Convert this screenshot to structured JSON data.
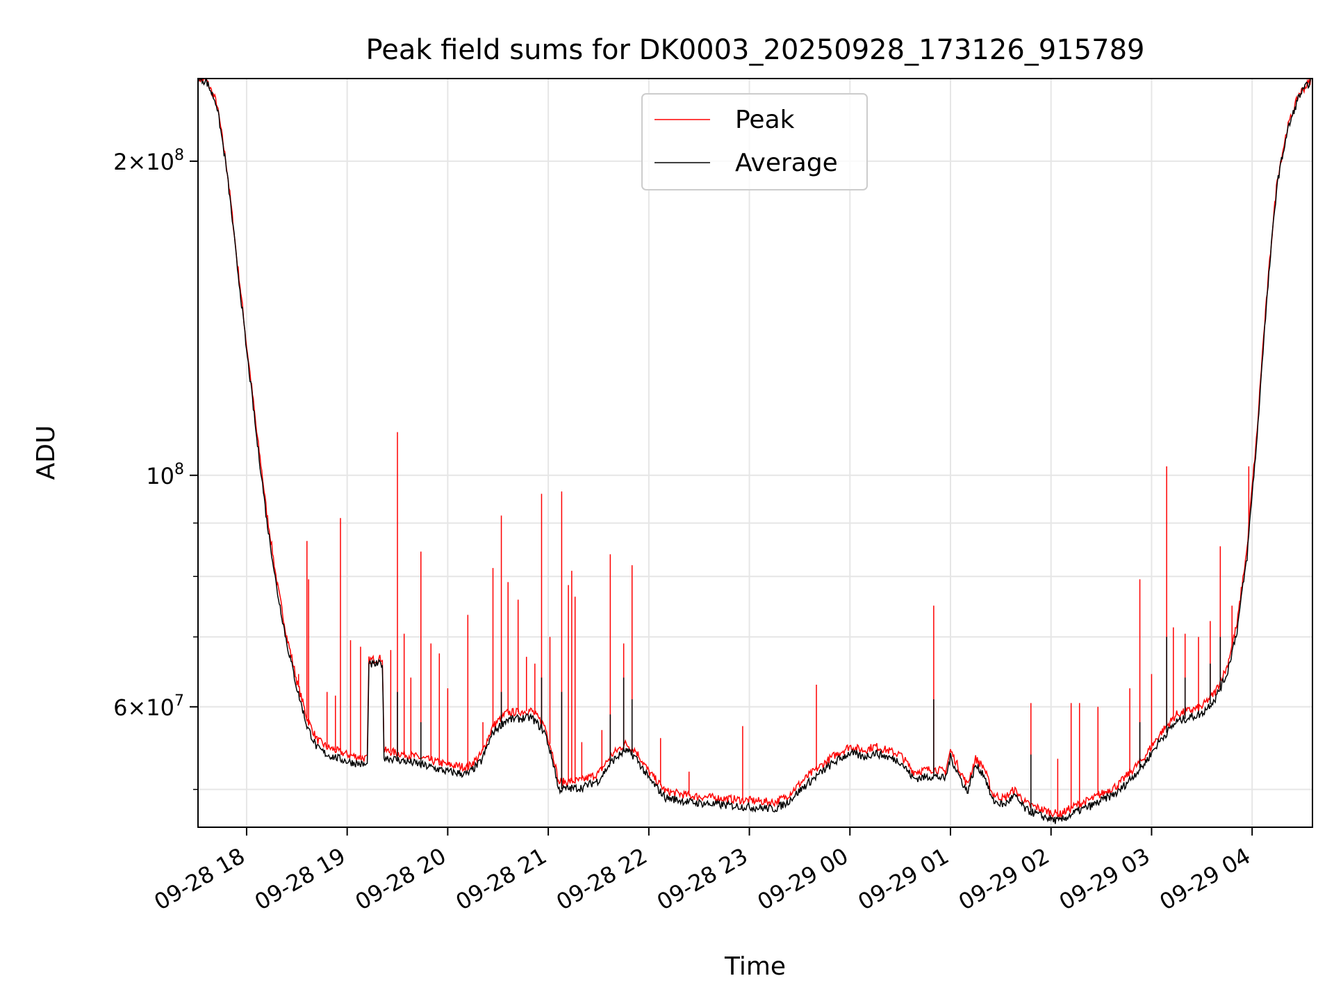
{
  "chart_data": {
    "type": "line",
    "title": "Peak field sums for DK0003_20250928_173126_915789",
    "xlabel": "Time",
    "ylabel": "ADU",
    "y_scale": "log",
    "x_range": [
      "2025-09-28 17:31",
      "2025-09-29 04:36"
    ],
    "ylim": [
      46000000,
      240000000
    ],
    "grid": true,
    "legend_position": "upper-center",
    "x_ticks": [
      {
        "t": "2025-09-28 18:00",
        "label": "09-28 18"
      },
      {
        "t": "2025-09-28 19:00",
        "label": "09-28 19"
      },
      {
        "t": "2025-09-28 20:00",
        "label": "09-28 20"
      },
      {
        "t": "2025-09-28 21:00",
        "label": "09-28 21"
      },
      {
        "t": "2025-09-28 22:00",
        "label": "09-28 22"
      },
      {
        "t": "2025-09-28 23:00",
        "label": "09-28 23"
      },
      {
        "t": "2025-09-29 00:00",
        "label": "09-29 00"
      },
      {
        "t": "2025-09-29 01:00",
        "label": "09-29 01"
      },
      {
        "t": "2025-09-29 02:00",
        "label": "09-29 02"
      },
      {
        "t": "2025-09-29 03:00",
        "label": "09-29 03"
      },
      {
        "t": "2025-09-29 04:00",
        "label": "09-29 04"
      }
    ],
    "y_major_ticks": [
      {
        "v": 200000000,
        "mant": "2",
        "exp": "8"
      },
      {
        "v": 100000000,
        "mant": "",
        "exp": "8"
      },
      {
        "v": 60000000,
        "mant": "6",
        "exp": "7"
      }
    ],
    "y_minor_ticks": [
      50000000,
      60000000,
      70000000,
      80000000,
      90000000,
      100000000,
      200000000
    ],
    "series": [
      {
        "name": "Peak",
        "color": "#ff0000",
        "points": [
          [
            "2025-09-28 17:31",
            240000000
          ],
          [
            "2025-09-28 17:36",
            239000000
          ],
          [
            "2025-09-28 17:42",
            228000000
          ],
          [
            "2025-09-28 17:48",
            198000000
          ],
          [
            "2025-09-28 17:54",
            162000000
          ],
          [
            "2025-09-28 18:00",
            133000000
          ],
          [
            "2025-09-28 18:06",
            110000000
          ],
          [
            "2025-09-28 18:12",
            92000000
          ],
          [
            "2025-09-28 18:18",
            79000000
          ],
          [
            "2025-09-28 18:24",
            70000000
          ],
          [
            "2025-09-28 18:30",
            63500000
          ],
          [
            "2025-09-28 18:36",
            58500000
          ],
          [
            "2025-09-28 18:42",
            55800000
          ],
          [
            "2025-09-28 18:48",
            54900000
          ],
          [
            "2025-09-28 19:00",
            54000000
          ],
          [
            "2025-09-28 19:12",
            53500000
          ],
          [
            "2025-09-28 19:13",
            66500000
          ],
          [
            "2025-09-28 19:21",
            66800000
          ],
          [
            "2025-09-28 19:22",
            54500000
          ],
          [
            "2025-09-28 19:40",
            53800000
          ],
          [
            "2025-09-28 20:00",
            52800000
          ],
          [
            "2025-09-28 20:12",
            52500000
          ],
          [
            "2025-09-28 20:20",
            54000000
          ],
          [
            "2025-09-28 20:27",
            57500000
          ],
          [
            "2025-09-28 20:35",
            59200000
          ],
          [
            "2025-09-28 20:50",
            59500000
          ],
          [
            "2025-09-28 20:58",
            57500000
          ],
          [
            "2025-09-28 21:04",
            53000000
          ],
          [
            "2025-09-28 21:06",
            50800000
          ],
          [
            "2025-09-28 21:20",
            51000000
          ],
          [
            "2025-09-28 21:30",
            51800000
          ],
          [
            "2025-09-28 21:38",
            54000000
          ],
          [
            "2025-09-28 21:46",
            55300000
          ],
          [
            "2025-09-28 21:52",
            54500000
          ],
          [
            "2025-09-28 22:00",
            52000000
          ],
          [
            "2025-09-28 22:10",
            49800000
          ],
          [
            "2025-09-28 22:25",
            49300000
          ],
          [
            "2025-09-28 22:45",
            49000000
          ],
          [
            "2025-09-28 23:00",
            48800000
          ],
          [
            "2025-09-28 23:15",
            48600000
          ],
          [
            "2025-09-28 23:22",
            49200000
          ],
          [
            "2025-09-28 23:35",
            51500000
          ],
          [
            "2025-09-28 23:50",
            53800000
          ],
          [
            "2025-09-29 00:00",
            55000000
          ],
          [
            "2025-09-29 00:08",
            54500000
          ],
          [
            "2025-09-29 00:15",
            55000000
          ],
          [
            "2025-09-29 00:30",
            54000000
          ],
          [
            "2025-09-29 00:38",
            52000000
          ],
          [
            "2025-09-29 00:50",
            52300000
          ],
          [
            "2025-09-29 00:57",
            52000000
          ],
          [
            "2025-09-29 01:00",
            54500000
          ],
          [
            "2025-09-29 01:06",
            52000000
          ],
          [
            "2025-09-29 01:10",
            50500000
          ],
          [
            "2025-09-29 01:15",
            53500000
          ],
          [
            "2025-09-29 01:20",
            52500000
          ],
          [
            "2025-09-29 01:25",
            49500000
          ],
          [
            "2025-09-29 01:32",
            49000000
          ],
          [
            "2025-09-29 01:38",
            50000000
          ],
          [
            "2025-09-29 01:45",
            48500000
          ],
          [
            "2025-09-29 01:55",
            47800000
          ],
          [
            "2025-09-29 02:05",
            47300000
          ],
          [
            "2025-09-29 02:15",
            48300000
          ],
          [
            "2025-09-29 02:25",
            49000000
          ],
          [
            "2025-09-29 02:40",
            50500000
          ],
          [
            "2025-09-29 02:55",
            53500000
          ],
          [
            "2025-09-29 03:05",
            56500000
          ],
          [
            "2025-09-29 03:15",
            59000000
          ],
          [
            "2025-09-29 03:30",
            60000000
          ],
          [
            "2025-09-29 03:38",
            62000000
          ],
          [
            "2025-09-29 03:45",
            65500000
          ],
          [
            "2025-09-29 03:51",
            72000000
          ],
          [
            "2025-09-29 03:57",
            85000000
          ],
          [
            "2025-09-29 04:03",
            110000000
          ],
          [
            "2025-09-29 04:09",
            150000000
          ],
          [
            "2025-09-29 04:15",
            192000000
          ],
          [
            "2025-09-29 04:21",
            215000000
          ],
          [
            "2025-09-29 04:28",
            232000000
          ],
          [
            "2025-09-29 04:36",
            240000000
          ]
        ],
        "spikes": [
          [
            "2025-09-28 18:31",
            64500000
          ],
          [
            "2025-09-28 18:36",
            86500000
          ],
          [
            "2025-09-28 18:37",
            79500000
          ],
          [
            "2025-09-28 18:48",
            62000000
          ],
          [
            "2025-09-28 18:53",
            61500000
          ],
          [
            "2025-09-28 18:56",
            91000000
          ],
          [
            "2025-09-28 19:02",
            69500000
          ],
          [
            "2025-09-28 19:08",
            68500000
          ],
          [
            "2025-09-28 19:26",
            68000000
          ],
          [
            "2025-09-28 19:30",
            110000000
          ],
          [
            "2025-09-28 19:34",
            70500000
          ],
          [
            "2025-09-28 19:38",
            64000000
          ],
          [
            "2025-09-28 19:44",
            84500000
          ],
          [
            "2025-09-28 19:50",
            69000000
          ],
          [
            "2025-09-28 19:55",
            67500000
          ],
          [
            "2025-09-28 20:00",
            62500000
          ],
          [
            "2025-09-28 20:12",
            73500000
          ],
          [
            "2025-09-28 20:21",
            58000000
          ],
          [
            "2025-09-28 20:27",
            81500000
          ],
          [
            "2025-09-28 20:32",
            91500000
          ],
          [
            "2025-09-28 20:36",
            79000000
          ],
          [
            "2025-09-28 20:42",
            76000000
          ],
          [
            "2025-09-28 20:47",
            67000000
          ],
          [
            "2025-09-28 20:52",
            66000000
          ],
          [
            "2025-09-28 20:56",
            96000000
          ],
          [
            "2025-09-28 21:01",
            70000000
          ],
          [
            "2025-09-28 21:08",
            96500000
          ],
          [
            "2025-09-28 21:12",
            78500000
          ],
          [
            "2025-09-28 21:14",
            81000000
          ],
          [
            "2025-09-28 21:16",
            76500000
          ],
          [
            "2025-09-28 21:20",
            55500000
          ],
          [
            "2025-09-28 21:32",
            57000000
          ],
          [
            "2025-09-28 21:37",
            84000000
          ],
          [
            "2025-09-28 21:45",
            69000000
          ],
          [
            "2025-09-28 21:50",
            82000000
          ],
          [
            "2025-09-28 22:07",
            56000000
          ],
          [
            "2025-09-28 22:24",
            52000000
          ],
          [
            "2025-09-28 22:56",
            57500000
          ],
          [
            "2025-09-28 23:40",
            63000000
          ],
          [
            "2025-09-29 00:50",
            75000000
          ],
          [
            "2025-09-29 01:48",
            60500000
          ],
          [
            "2025-09-29 02:04",
            53500000
          ],
          [
            "2025-09-29 02:12",
            60500000
          ],
          [
            "2025-09-29 02:17",
            60500000
          ],
          [
            "2025-09-29 02:28",
            60000000
          ],
          [
            "2025-09-29 02:47",
            62500000
          ],
          [
            "2025-09-29 02:53",
            79500000
          ],
          [
            "2025-09-29 03:00",
            64500000
          ],
          [
            "2025-09-29 03:09",
            102000000
          ],
          [
            "2025-09-29 03:13",
            71500000
          ],
          [
            "2025-09-29 03:20",
            70500000
          ],
          [
            "2025-09-29 03:28",
            70000000
          ],
          [
            "2025-09-29 03:35",
            72500000
          ],
          [
            "2025-09-29 03:41",
            85500000
          ],
          [
            "2025-09-29 03:48",
            75000000
          ],
          [
            "2025-09-29 03:58",
            102000000
          ],
          [
            "2025-09-29 04:01",
            101000000
          ]
        ]
      },
      {
        "name": "Average",
        "color": "#000000",
        "points": [
          [
            "2025-09-28 17:31",
            240000000
          ],
          [
            "2025-09-28 17:36",
            238500000
          ],
          [
            "2025-09-28 17:42",
            227000000
          ],
          [
            "2025-09-28 17:48",
            196500000
          ],
          [
            "2025-09-28 17:54",
            160500000
          ],
          [
            "2025-09-28 18:00",
            131500000
          ],
          [
            "2025-09-28 18:06",
            108500000
          ],
          [
            "2025-09-28 18:12",
            90500000
          ],
          [
            "2025-09-28 18:18",
            77800000
          ],
          [
            "2025-09-28 18:24",
            69000000
          ],
          [
            "2025-09-28 18:30",
            62500000
          ],
          [
            "2025-09-28 18:36",
            57500000
          ],
          [
            "2025-09-28 18:42",
            54800000
          ],
          [
            "2025-09-28 18:48",
            54000000
          ],
          [
            "2025-09-28 19:00",
            53200000
          ],
          [
            "2025-09-28 19:12",
            52700000
          ],
          [
            "2025-09-28 19:13",
            65800000
          ],
          [
            "2025-09-28 19:21",
            66000000
          ],
          [
            "2025-09-28 19:22",
            53700000
          ],
          [
            "2025-09-28 19:40",
            53000000
          ],
          [
            "2025-09-28 20:00",
            52000000
          ],
          [
            "2025-09-28 20:12",
            51700000
          ],
          [
            "2025-09-28 20:20",
            53200000
          ],
          [
            "2025-09-28 20:27",
            56700000
          ],
          [
            "2025-09-28 20:35",
            58300000
          ],
          [
            "2025-09-28 20:50",
            58600000
          ],
          [
            "2025-09-28 20:58",
            56700000
          ],
          [
            "2025-09-28 21:04",
            52200000
          ],
          [
            "2025-09-28 21:06",
            50000000
          ],
          [
            "2025-09-28 21:20",
            50200000
          ],
          [
            "2025-09-28 21:30",
            51000000
          ],
          [
            "2025-09-28 21:38",
            53200000
          ],
          [
            "2025-09-28 21:46",
            54500000
          ],
          [
            "2025-09-28 21:52",
            53700000
          ],
          [
            "2025-09-28 22:00",
            51200000
          ],
          [
            "2025-09-28 22:10",
            49100000
          ],
          [
            "2025-09-28 22:25",
            48600000
          ],
          [
            "2025-09-28 22:45",
            48300000
          ],
          [
            "2025-09-28 23:00",
            48100000
          ],
          [
            "2025-09-28 23:15",
            47900000
          ],
          [
            "2025-09-28 23:22",
            48500000
          ],
          [
            "2025-09-28 23:35",
            50700000
          ],
          [
            "2025-09-28 23:50",
            53000000
          ],
          [
            "2025-09-29 00:00",
            54200000
          ],
          [
            "2025-09-29 00:08",
            53700000
          ],
          [
            "2025-09-29 00:15",
            54200000
          ],
          [
            "2025-09-29 00:30",
            53200000
          ],
          [
            "2025-09-29 00:38",
            51200000
          ],
          [
            "2025-09-29 00:50",
            51500000
          ],
          [
            "2025-09-29 00:57",
            51200000
          ],
          [
            "2025-09-29 01:00",
            53700000
          ],
          [
            "2025-09-29 01:06",
            51200000
          ],
          [
            "2025-09-29 01:10",
            49700000
          ],
          [
            "2025-09-29 01:15",
            52700000
          ],
          [
            "2025-09-29 01:20",
            51700000
          ],
          [
            "2025-09-29 01:25",
            48800000
          ],
          [
            "2025-09-29 01:32",
            48300000
          ],
          [
            "2025-09-29 01:38",
            49300000
          ],
          [
            "2025-09-29 01:45",
            47800000
          ],
          [
            "2025-09-29 01:55",
            47100000
          ],
          [
            "2025-09-29 02:05",
            46600000
          ],
          [
            "2025-09-29 02:15",
            47600000
          ],
          [
            "2025-09-29 02:25",
            48300000
          ],
          [
            "2025-09-29 02:40",
            49700000
          ],
          [
            "2025-09-29 02:55",
            52700000
          ],
          [
            "2025-09-29 03:05",
            55700000
          ],
          [
            "2025-09-29 03:15",
            58100000
          ],
          [
            "2025-09-29 03:30",
            59100000
          ],
          [
            "2025-09-29 03:38",
            61100000
          ],
          [
            "2025-09-29 03:45",
            64500000
          ],
          [
            "2025-09-29 03:51",
            71000000
          ],
          [
            "2025-09-29 03:57",
            83500000
          ],
          [
            "2025-09-29 04:03",
            108500000
          ],
          [
            "2025-09-29 04:09",
            148500000
          ],
          [
            "2025-09-29 04:15",
            190500000
          ],
          [
            "2025-09-29 04:21",
            213500000
          ],
          [
            "2025-09-29 04:28",
            231000000
          ],
          [
            "2025-09-29 04:36",
            240000000
          ]
        ],
        "spikes": [
          [
            "2025-09-28 19:30",
            62000000
          ],
          [
            "2025-09-28 19:44",
            58000000
          ],
          [
            "2025-09-28 20:32",
            62000000
          ],
          [
            "2025-09-28 20:56",
            64000000
          ],
          [
            "2025-09-28 21:08",
            62000000
          ],
          [
            "2025-09-28 21:37",
            59000000
          ],
          [
            "2025-09-28 21:45",
            64000000
          ],
          [
            "2025-09-28 21:50",
            61000000
          ],
          [
            "2025-09-29 00:50",
            61000000
          ],
          [
            "2025-09-29 01:48",
            54000000
          ],
          [
            "2025-09-29 02:53",
            58000000
          ],
          [
            "2025-09-29 03:09",
            70000000
          ],
          [
            "2025-09-29 03:20",
            64000000
          ],
          [
            "2025-09-29 03:35",
            66000000
          ],
          [
            "2025-09-29 03:41",
            70000000
          ],
          [
            "2025-09-29 03:48",
            68000000
          ]
        ]
      }
    ]
  }
}
